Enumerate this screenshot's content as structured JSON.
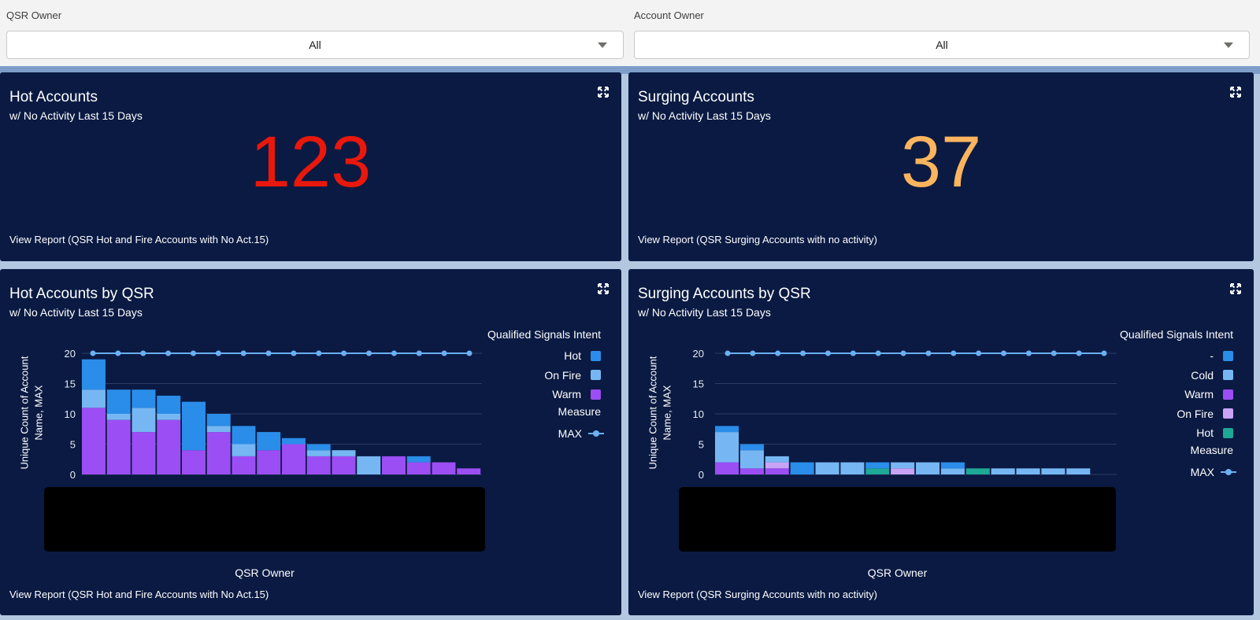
{
  "filters": {
    "qsr_owner": {
      "label": "QSR Owner",
      "value": "All"
    },
    "account_owner": {
      "label": "Account Owner",
      "value": "All"
    }
  },
  "panels": {
    "hot_accounts": {
      "title": "Hot Accounts",
      "subtitle": "w/ No Activity Last 15 Days",
      "value": "123",
      "value_color": "#e8180c",
      "report": "View Report (QSR Hot and Fire Accounts with No Act.15)"
    },
    "surging_accounts": {
      "title": "Surging Accounts",
      "subtitle": "w/ No Activity Last 15 Days",
      "value": "37",
      "value_color": "#fcb45e",
      "report": "View Report (QSR Surging Accounts with no activity)"
    },
    "hot_by_qsr": {
      "title": "Hot Accounts by QSR",
      "subtitle": "w/ No Activity Last 15 Days",
      "legend_title": "Qualified Signals Intent",
      "legend": [
        {
          "label": "Hot",
          "color": "#2a8de9"
        },
        {
          "label": "On Fire",
          "color": "#76b7f3"
        },
        {
          "label": "Warm",
          "color": "#9c4ef5"
        }
      ],
      "measure_label": "Measure",
      "max_label": "MAX",
      "x_title": "QSR Owner",
      "y_title_line1": "Unique Count of Account",
      "y_title_line2": "Name, MAX",
      "report": "View Report (QSR Hot and Fire Accounts with No Act.15)"
    },
    "surging_by_qsr": {
      "title": "Surging Accounts by QSR",
      "subtitle": "w/ No Activity Last 15 Days",
      "legend_title": "Qualified Signals Intent",
      "legend": [
        {
          "label": "-",
          "color": "#2a8de9"
        },
        {
          "label": "Cold",
          "color": "#76b7f3"
        },
        {
          "label": "Warm",
          "color": "#9c4ef5"
        },
        {
          "label": "On Fire",
          "color": "#c9a3f5"
        },
        {
          "label": "Hot",
          "color": "#1ea896"
        }
      ],
      "measure_label": "Measure",
      "max_label": "MAX",
      "x_title": "QSR Owner",
      "y_title_line1": "Unique Count of Account",
      "y_title_line2": "Name, MAX",
      "report": "View Report (QSR Surging Accounts with no activity)"
    }
  },
  "chart_data": [
    {
      "type": "bar",
      "title": "Hot Accounts by QSR",
      "stacked": true,
      "xlabel": "QSR Owner",
      "ylabel": "Unique Count of Account Name, MAX",
      "ylim": [
        0,
        20
      ],
      "yticks": [
        0,
        5,
        10,
        15,
        20
      ],
      "grid": true,
      "legend_position": "right",
      "series": [
        {
          "name": "Warm",
          "color": "#9c4ef5",
          "values": [
            11,
            9,
            7,
            9,
            4,
            7,
            3,
            4,
            5,
            3,
            3,
            0,
            3,
            2,
            2,
            1
          ]
        },
        {
          "name": "On Fire",
          "color": "#76b7f3",
          "values": [
            3,
            1,
            4,
            1,
            0,
            1,
            2,
            0,
            0,
            1,
            1,
            3,
            0,
            0,
            0,
            0
          ]
        },
        {
          "name": "Hot",
          "color": "#2a8de9",
          "values": [
            5,
            4,
            3,
            3,
            8,
            2,
            3,
            3,
            1,
            1,
            0,
            0,
            0,
            1,
            0,
            0
          ]
        }
      ],
      "max_line": {
        "name": "MAX",
        "value": 20,
        "color": "#6ab0f3"
      }
    },
    {
      "type": "bar",
      "title": "Surging Accounts by QSR",
      "stacked": true,
      "xlabel": "QSR Owner",
      "ylabel": "Unique Count of Account Name, MAX",
      "ylim": [
        0,
        20
      ],
      "yticks": [
        0,
        5,
        10,
        15,
        20
      ],
      "grid": true,
      "legend_position": "right",
      "series": [
        {
          "name": "Warm",
          "color": "#9c4ef5",
          "values": [
            2,
            1,
            1,
            0,
            0,
            0,
            0,
            0,
            0,
            0,
            0,
            0,
            0,
            0,
            0,
            0
          ]
        },
        {
          "name": "On Fire",
          "color": "#c9a3f5",
          "values": [
            0,
            0,
            1,
            0,
            0,
            0,
            0,
            1,
            0,
            0,
            0,
            0,
            0,
            0,
            0,
            0
          ]
        },
        {
          "name": "Hot",
          "color": "#1ea896",
          "values": [
            0,
            0,
            0,
            0,
            0,
            0,
            1,
            0,
            0,
            0,
            1,
            0,
            0,
            0,
            0,
            0
          ]
        },
        {
          "name": "Cold",
          "color": "#76b7f3",
          "values": [
            5,
            3,
            1,
            0,
            2,
            2,
            0,
            1,
            2,
            1,
            0,
            1,
            1,
            1,
            1,
            0
          ]
        },
        {
          "name": "-",
          "color": "#2a8de9",
          "values": [
            1,
            1,
            0,
            2,
            0,
            0,
            1,
            0,
            0,
            1,
            0,
            0,
            0,
            0,
            0,
            0
          ]
        }
      ],
      "max_line": {
        "name": "MAX",
        "value": 20,
        "color": "#6ab0f3"
      }
    }
  ]
}
